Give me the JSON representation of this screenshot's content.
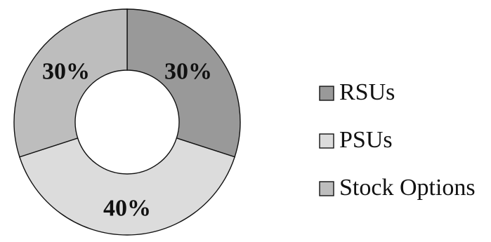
{
  "chart_data": {
    "type": "pie",
    "variant": "donut",
    "slices": [
      {
        "label": "RSUs",
        "value": 30,
        "display": "30%",
        "color": "#999999"
      },
      {
        "label": "PSUs",
        "value": 40,
        "display": "40%",
        "color": "#dcdcdc"
      },
      {
        "label": "Stock Options",
        "value": 30,
        "display": "30%",
        "color": "#bdbdbd"
      }
    ],
    "legend_position": "right"
  }
}
